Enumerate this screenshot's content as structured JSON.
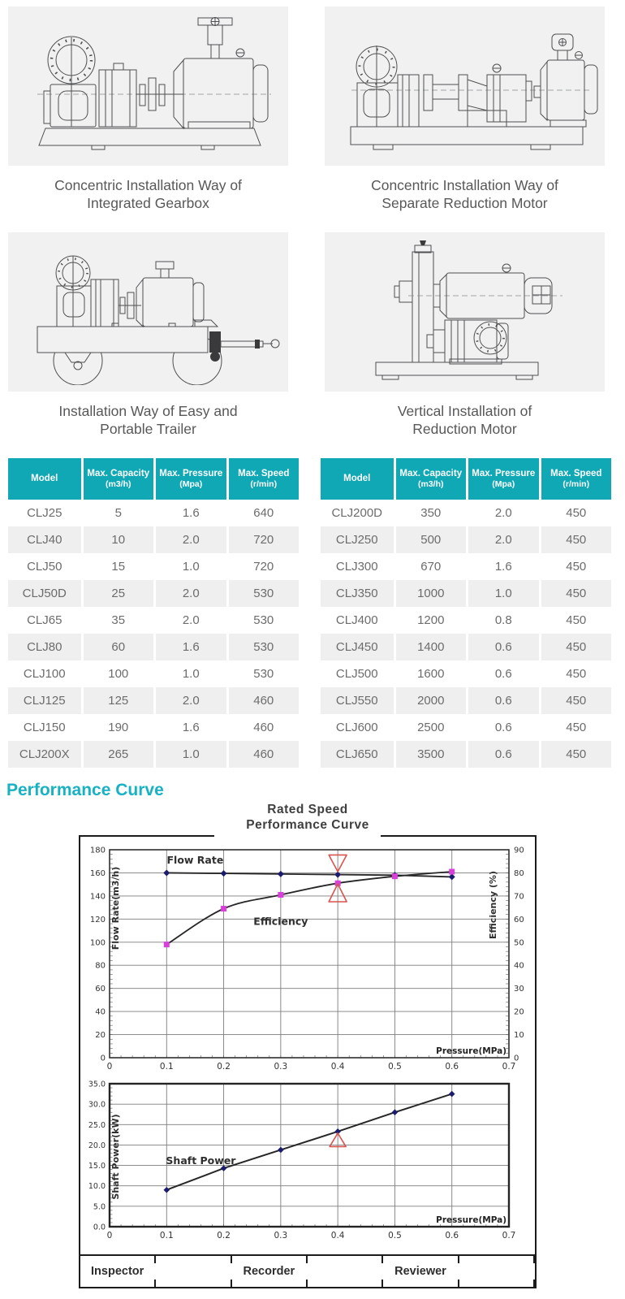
{
  "installations": [
    {
      "line1": "Concentric Installation Way of",
      "line2": "Integrated Gearbox"
    },
    {
      "line1": "Concentric Installation Way of",
      "line2": "Separate Reduction Motor"
    },
    {
      "line1": "Installation Way of Easy and",
      "line2": "Portable Trailer"
    },
    {
      "line1": "Vertical Installation of",
      "line2": "Reduction Motor"
    }
  ],
  "spec_tables": {
    "header_bg": "#10a8b5",
    "headers": [
      {
        "line1": "Model",
        "line2": ""
      },
      {
        "line1": "Max. Capacity",
        "line2": "(m3/h)"
      },
      {
        "line1": "Max. Pressure",
        "line2": "(Mpa)"
      },
      {
        "line1": "Max. Speed",
        "line2": "(r/min)"
      }
    ],
    "tables": [
      {
        "rows": [
          [
            "CLJ25",
            "5",
            "1.6",
            "640"
          ],
          [
            "CLJ40",
            "10",
            "2.0",
            "720"
          ],
          [
            "CLJ50",
            "15",
            "1.0",
            "720"
          ],
          [
            "CLJ50D",
            "25",
            "2.0",
            "530"
          ],
          [
            "CLJ65",
            "35",
            "2.0",
            "530"
          ],
          [
            "CLJ80",
            "60",
            "1.6",
            "530"
          ],
          [
            "CLJ100",
            "100",
            "1.0",
            "530"
          ],
          [
            "CLJ125",
            "125",
            "2.0",
            "460"
          ],
          [
            "CLJ150",
            "190",
            "1.6",
            "460"
          ],
          [
            "CLJ200X",
            "265",
            "1.0",
            "460"
          ]
        ]
      },
      {
        "rows": [
          [
            "CLJ200D",
            "350",
            "2.0",
            "450"
          ],
          [
            "CLJ250",
            "500",
            "2.0",
            "450"
          ],
          [
            "CLJ300",
            "670",
            "1.6",
            "450"
          ],
          [
            "CLJ350",
            "1000",
            "1.0",
            "450"
          ],
          [
            "CLJ400",
            "1200",
            "0.8",
            "450"
          ],
          [
            "CLJ450",
            "1400",
            "0.6",
            "450"
          ],
          [
            "CLJ500",
            "1600",
            "0.6",
            "450"
          ],
          [
            "CLJ550",
            "2000",
            "0.6",
            "450"
          ],
          [
            "CLJ600",
            "2500",
            "0.6",
            "450"
          ],
          [
            "CLJ650",
            "3500",
            "0.6",
            "450"
          ]
        ]
      }
    ]
  },
  "section_heading": "Performance Curve",
  "chart_title": {
    "line1": "Rated Speed",
    "line2": "Performance  Curve"
  },
  "chart_data": [
    {
      "type": "line",
      "title": "Rated Speed Performance Curve",
      "xlabel": "Pressure(MPa)",
      "ylabel_left": "Flow Rate(m3/h)",
      "ylabel_right": "Efficiency (%)",
      "xlim": [
        0,
        0.7
      ],
      "ylim_left": [
        0,
        180
      ],
      "ylim_right": [
        0,
        90
      ],
      "x_ticks": [
        "0",
        "0.1",
        "0.2",
        "0.3",
        "0.4",
        "0.5",
        "0.6",
        "0.7"
      ],
      "y_ticks_left": [
        0,
        20,
        40,
        60,
        80,
        100,
        120,
        140,
        160,
        180
      ],
      "y_ticks_right": [
        0,
        10,
        20,
        30,
        40,
        50,
        60,
        70,
        80,
        90
      ],
      "grid": true,
      "legend_position": "inline-annotations",
      "series": [
        {
          "name": "Flow Rate",
          "axis": "left",
          "marker": "diamond",
          "x": [
            0.1,
            0.2,
            0.3,
            0.4,
            0.5,
            0.6
          ],
          "y": [
            160,
            159.5,
            159,
            158.5,
            158,
            156.5
          ]
        },
        {
          "name": "Efficiency",
          "axis": "right",
          "marker": "square",
          "x": [
            0.1,
            0.2,
            0.3,
            0.4,
            0.5,
            0.6
          ],
          "y": [
            49,
            64.5,
            70.5,
            75.5,
            78.5,
            80.5
          ]
        }
      ],
      "annotations": [
        {
          "text": "Flow Rate",
          "x": 0.15,
          "y": 168
        },
        {
          "text": "Efficiency",
          "x": 0.3,
          "y": 115
        }
      ],
      "rated_marker": {
        "x": 0.4,
        "style": "hourglass"
      }
    },
    {
      "type": "line",
      "xlabel": "Pressure(MPa)",
      "ylabel": "Shaft Power(kW)",
      "xlim": [
        0,
        0.7
      ],
      "ylim": [
        0,
        35
      ],
      "x_ticks": [
        "0",
        "0.1",
        "0.2",
        "0.3",
        "0.4",
        "0.5",
        "0.6",
        "0.7"
      ],
      "y_ticks": [
        "0.0",
        "5.0",
        "10.0",
        "15.0",
        "20.0",
        "25.0",
        "30.0",
        "35.0"
      ],
      "grid": true,
      "series": [
        {
          "name": "Shaft Power",
          "marker": "diamond",
          "x": [
            0.1,
            0.2,
            0.3,
            0.4,
            0.5,
            0.6
          ],
          "y": [
            9,
            14.3,
            18.8,
            23.3,
            28,
            32.5
          ]
        }
      ],
      "annotations": [
        {
          "text": "Shaft Power",
          "x": 0.16,
          "y": 15.3
        }
      ],
      "rated_marker": {
        "x": 0.4,
        "style": "triangle-up",
        "y": 21
      }
    }
  ],
  "chart_footer": {
    "cells": [
      "Inspector",
      "",
      "Recorder",
      "",
      "Reviewer",
      ""
    ]
  },
  "colors": {
    "accent_teal": "#10a8b5",
    "heading_teal": "#17b2c3",
    "series_line": "#262626",
    "flow_marker_navy": "#1c1c6e",
    "efficiency_marker_magenta": "#d93fd9",
    "rated_marker_red": "#d9534f",
    "row_alt_gray": "#efefef",
    "drawing_bg": "#f1f1f2"
  }
}
